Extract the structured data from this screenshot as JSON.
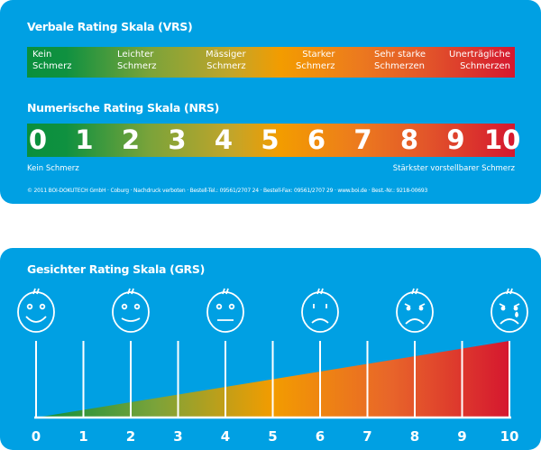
{
  "vrs": {
    "title": "Verbale Rating Skala (VRS)",
    "labels": [
      [
        "Kein",
        "Schmerz"
      ],
      [
        "Leichter",
        "Schmerz"
      ],
      [
        "Mässiger",
        "Schmerz"
      ],
      [
        "Starker",
        "Schmerz"
      ],
      [
        "Sehr starke",
        "Schmerzen"
      ],
      [
        "Unerträgliche",
        "Schmerzen"
      ]
    ]
  },
  "nrs": {
    "title": "Numerische Rating Skala (NRS)",
    "numbers": [
      "0",
      "1",
      "2",
      "3",
      "4",
      "5",
      "6",
      "7",
      "8",
      "9",
      "10"
    ],
    "min_label": "Kein Schmerz",
    "max_label": "Stärkster vorstellbarer Schmerz"
  },
  "copyright": "© 2011 BOI-DOKUTECH GmbH · Coburg · Nachdruck verboten · Bestell-Tel.: 09561/2707 24 · Bestell-Fax: 09561/2707 29 · www.boi.de · Best.-Nr.: 9218-00693",
  "grs": {
    "title": "Gesichter Rating Skala (GRS)",
    "faces": [
      "very-happy-face-icon",
      "happy-face-icon",
      "neutral-face-icon",
      "sad-face-icon",
      "worried-face-icon",
      "crying-face-icon"
    ],
    "ticks": [
      "0",
      "1",
      "2",
      "3",
      "4",
      "5",
      "6",
      "7",
      "8",
      "9",
      "10"
    ]
  },
  "colors": {
    "background": "#00a0e3",
    "low": "#0f9140",
    "mid": "#f39c00",
    "high": "#d5172f"
  }
}
